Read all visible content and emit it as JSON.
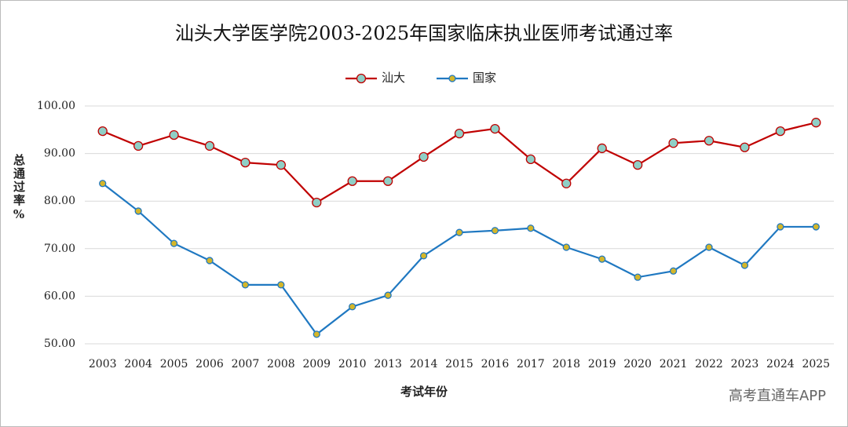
{
  "chart_data": {
    "type": "line",
    "title": "汕头大学医学院2003-2025年国家临床执业医师考试通过率",
    "x_label": "考试年份",
    "y_label": "总通过率%",
    "watermark": "高考直通车APP",
    "categories": [
      "2003",
      "2004",
      "2005",
      "2006",
      "2007",
      "2008",
      "2009",
      "2010",
      "2013",
      "2014",
      "2015",
      "2016",
      "2017",
      "2018",
      "2019",
      "2020",
      "2021",
      "2022",
      "2023",
      "2024",
      "2025"
    ],
    "series": [
      {
        "name": "汕大",
        "color": "#c00000",
        "marker_color": "#8fcfc6",
        "values": [
          94.7,
          91.6,
          93.9,
          91.6,
          88.1,
          87.6,
          79.7,
          84.2,
          84.2,
          89.3,
          94.2,
          95.2,
          88.8,
          83.7,
          91.1,
          87.6,
          92.2,
          92.7,
          91.3,
          94.7,
          96.5
        ]
      },
      {
        "name": "国家",
        "color": "#1f78c1",
        "marker_color": "#d4b62a",
        "values": [
          83.7,
          77.9,
          71.1,
          67.5,
          62.4,
          62.4,
          52.0,
          57.8,
          60.2,
          68.5,
          73.4,
          73.8,
          74.3,
          70.3,
          67.8,
          64.0,
          65.3,
          70.3,
          66.5,
          74.6,
          74.6
        ]
      }
    ],
    "ylim": [
      50,
      100
    ],
    "yticks": [
      {
        "value": 50,
        "label": "50.00"
      },
      {
        "value": 60,
        "label": "60.00"
      },
      {
        "value": 70,
        "label": "70.00"
      },
      {
        "value": 80,
        "label": "80.00"
      },
      {
        "value": 90,
        "label": "90.00"
      },
      {
        "value": 100,
        "label": "100.00"
      }
    ],
    "grid": true,
    "legend": "top"
  }
}
